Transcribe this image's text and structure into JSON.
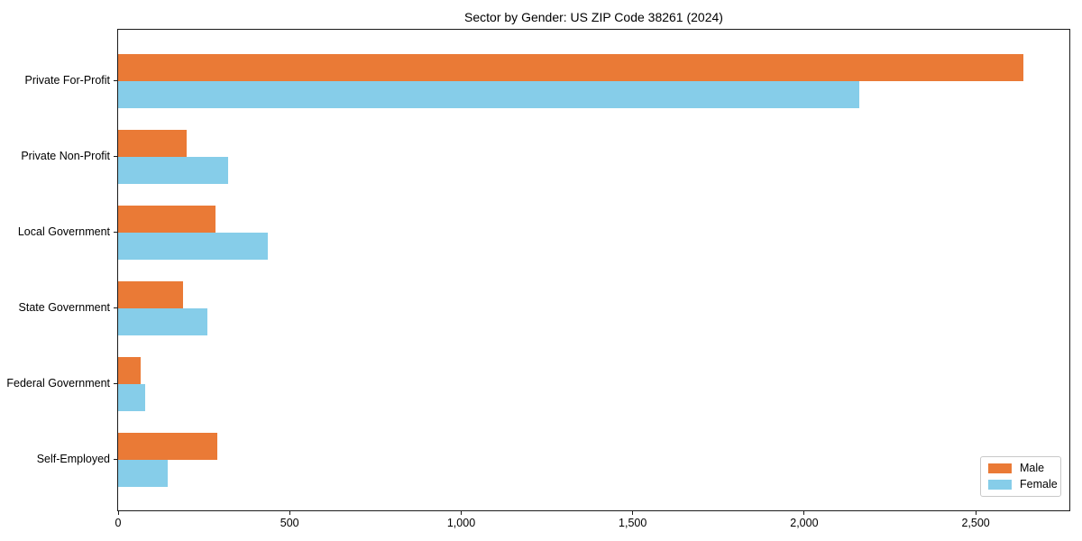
{
  "chart_data": {
    "type": "bar",
    "orientation": "horizontal",
    "title": "Sector by Gender: US ZIP Code 38261 (2024)",
    "categories": [
      "Private For-Profit",
      "Private Non-Profit",
      "Local Government",
      "State Government",
      "Federal Government",
      "Self-Employed"
    ],
    "series": [
      {
        "name": "Male",
        "color": "#EA7A36",
        "values": [
          2640,
          200,
          285,
          190,
          65,
          290
        ]
      },
      {
        "name": "Female",
        "color": "#86CDE9",
        "values": [
          2160,
          320,
          435,
          260,
          80,
          145
        ]
      }
    ],
    "xlabel": "",
    "ylabel": "",
    "xlim": [
      0,
      2773
    ],
    "xticks": [
      {
        "value": 0,
        "label": "0"
      },
      {
        "value": 500,
        "label": "500"
      },
      {
        "value": 1000,
        "label": "1,000"
      },
      {
        "value": 1500,
        "label": "1,500"
      },
      {
        "value": 2000,
        "label": "2,000"
      },
      {
        "value": 2500,
        "label": "2,500"
      }
    ],
    "grid": false,
    "legend": {
      "position": "lower right",
      "entries": [
        "Male",
        "Female"
      ]
    }
  }
}
